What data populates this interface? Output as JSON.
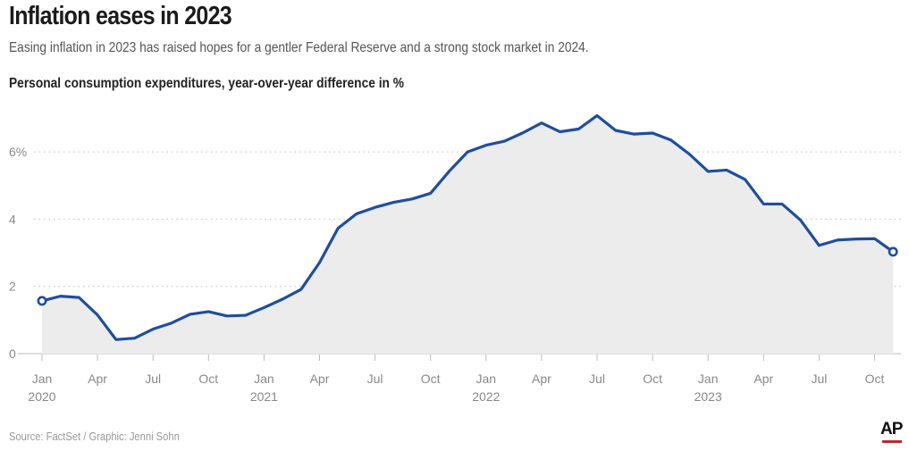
{
  "headline": "Inflation eases in 2023",
  "subtitle": "Easing inflation in 2023 has raised hopes for a gentler Federal Reserve and a strong stock market in 2024.",
  "source": "Source: FactSet / Graphic: Jenni Sohn",
  "logo": {
    "text": "AP"
  },
  "colors": {
    "line": "#1f4e9c",
    "area": "#ececec",
    "grid": "#bdbdbd",
    "brand_red": "#c0272d"
  },
  "chart_data": {
    "type": "line",
    "title": "Personal consumption expenditures, year-over-year difference in %",
    "xlabel": "",
    "ylabel": "",
    "ylim": [
      0,
      7.5
    ],
    "yticks": [
      {
        "value": 6,
        "label": "6%"
      },
      {
        "value": 4,
        "label": "4"
      },
      {
        "value": 2,
        "label": "2"
      },
      {
        "value": 0,
        "label": "0"
      }
    ],
    "xticks": [
      {
        "index": 0,
        "label": "Jan",
        "year": "2020"
      },
      {
        "index": 3,
        "label": "Apr",
        "year": ""
      },
      {
        "index": 6,
        "label": "Jul",
        "year": ""
      },
      {
        "index": 9,
        "label": "Oct",
        "year": ""
      },
      {
        "index": 12,
        "label": "Jan",
        "year": "2021"
      },
      {
        "index": 15,
        "label": "Apr",
        "year": ""
      },
      {
        "index": 18,
        "label": "Jul",
        "year": ""
      },
      {
        "index": 21,
        "label": "Oct",
        "year": ""
      },
      {
        "index": 24,
        "label": "Jan",
        "year": "2022"
      },
      {
        "index": 27,
        "label": "Apr",
        "year": ""
      },
      {
        "index": 30,
        "label": "Jul",
        "year": ""
      },
      {
        "index": 33,
        "label": "Oct",
        "year": ""
      },
      {
        "index": 36,
        "label": "Jan",
        "year": "2023"
      },
      {
        "index": 39,
        "label": "Apr",
        "year": ""
      },
      {
        "index": 42,
        "label": "Jul",
        "year": ""
      },
      {
        "index": 45,
        "label": "Oct",
        "year": ""
      }
    ],
    "x": [
      "2020-01",
      "2020-02",
      "2020-03",
      "2020-04",
      "2020-05",
      "2020-06",
      "2020-07",
      "2020-08",
      "2020-09",
      "2020-10",
      "2020-11",
      "2020-12",
      "2021-01",
      "2021-02",
      "2021-03",
      "2021-04",
      "2021-05",
      "2021-06",
      "2021-07",
      "2021-08",
      "2021-09",
      "2021-10",
      "2021-11",
      "2021-12",
      "2022-01",
      "2022-02",
      "2022-03",
      "2022-04",
      "2022-05",
      "2022-06",
      "2022-07",
      "2022-08",
      "2022-09",
      "2022-10",
      "2022-11",
      "2022-12",
      "2023-01",
      "2023-02",
      "2023-03",
      "2023-04",
      "2023-05",
      "2023-06",
      "2023-07",
      "2023-08",
      "2023-09",
      "2023-10",
      "2023-11"
    ],
    "series": [
      {
        "values": [
          1.57,
          1.71,
          1.67,
          1.15,
          0.42,
          0.46,
          0.73,
          0.91,
          1.17,
          1.25,
          1.12,
          1.14,
          1.37,
          1.62,
          1.91,
          2.71,
          3.73,
          4.16,
          4.35,
          4.5,
          4.6,
          4.77,
          5.42,
          6.0,
          6.2,
          6.32,
          6.57,
          6.86,
          6.6,
          6.68,
          7.08,
          6.64,
          6.53,
          6.56,
          6.35,
          5.93,
          5.42,
          5.46,
          5.18,
          4.45,
          4.45,
          3.97,
          3.22,
          3.38,
          3.41,
          3.42,
          3.03
        ]
      }
    ],
    "markers": [
      "first",
      "last"
    ],
    "grid": true,
    "area_fill": true,
    "legend": "none"
  }
}
